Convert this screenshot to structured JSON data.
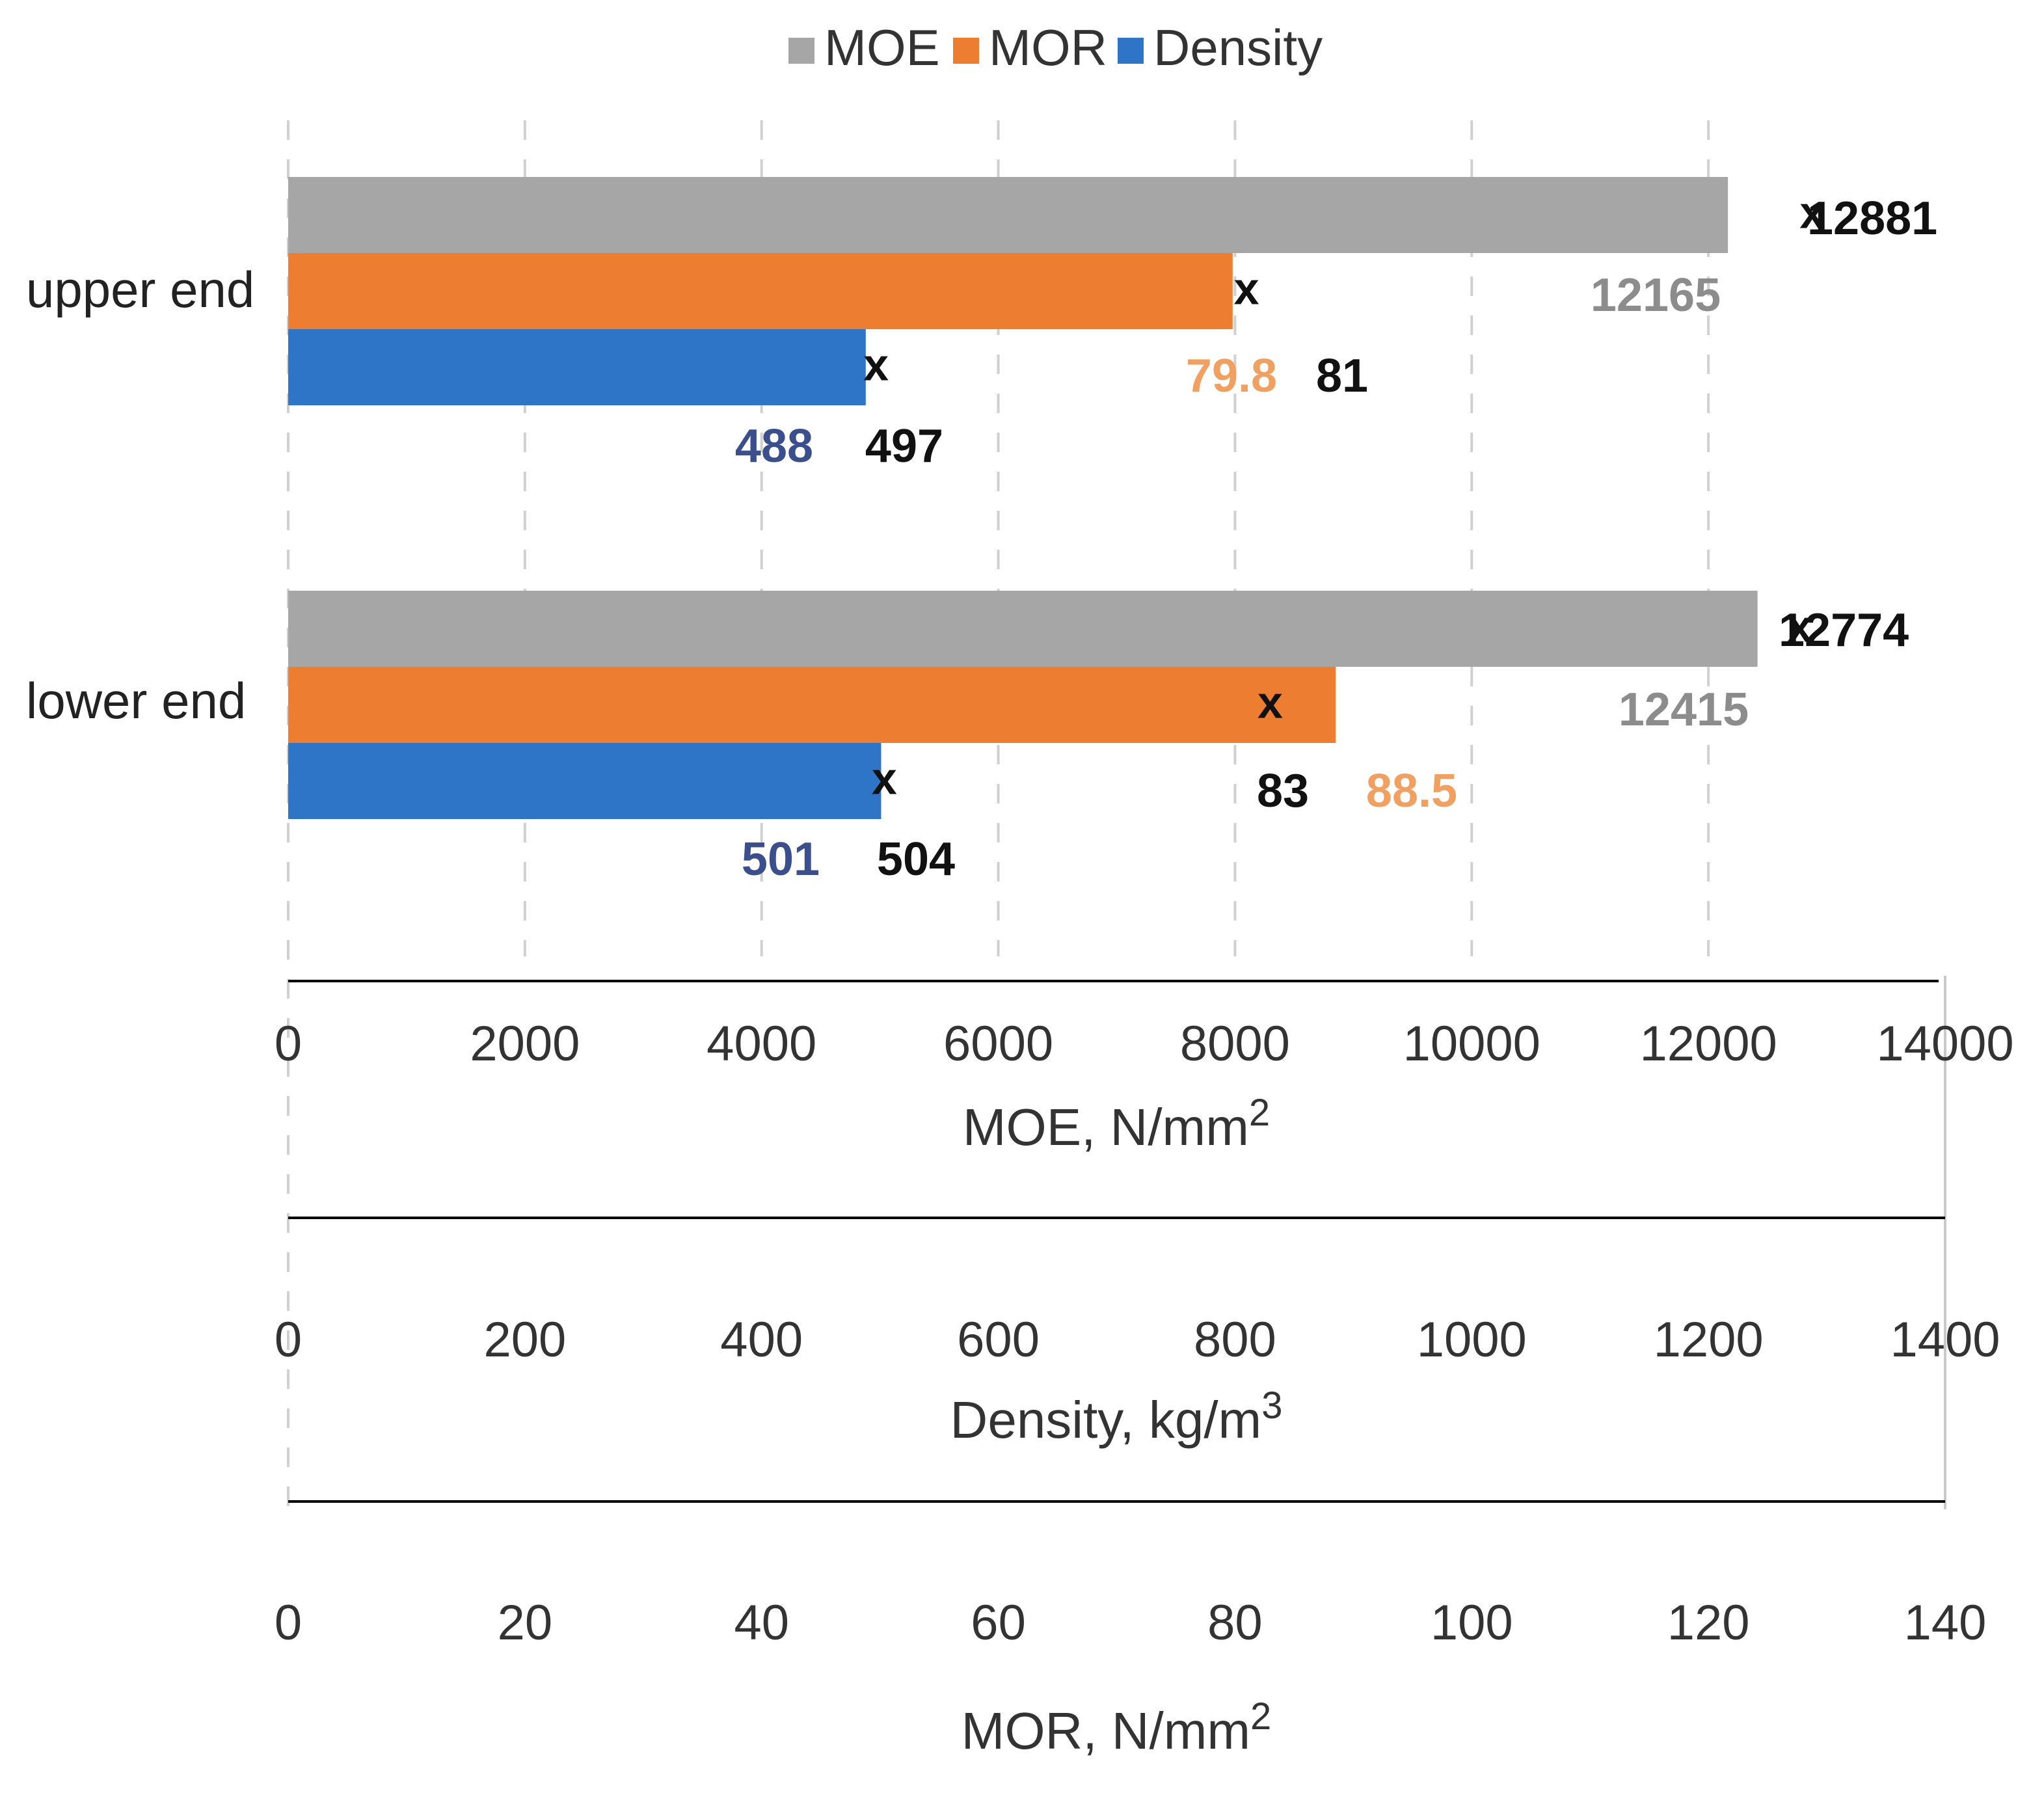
{
  "chart_data": {
    "type": "bar",
    "orientation": "horizontal",
    "categories": [
      "upper end",
      "lower end"
    ],
    "series": [
      {
        "name": "MOE",
        "color": "#a6a6a6",
        "axis": "MOE",
        "values": [
          12165,
          12415
        ],
        "reference": [
          12881,
          12774
        ]
      },
      {
        "name": "MOR",
        "color": "#ed7d31",
        "axis": "MOR",
        "values": [
          79.8,
          88.5
        ],
        "reference": [
          81,
          83
        ]
      },
      {
        "name": "Density",
        "color": "#2e75c8",
        "axis": "Density",
        "values": [
          488,
          501
        ],
        "reference": [
          497,
          504
        ]
      }
    ],
    "legend": {
      "position": "top",
      "items": [
        "MOE",
        "MOR",
        "Density"
      ]
    },
    "axes": [
      {
        "key": "MOE",
        "title_main": "MOE, N/mm",
        "title_sup": "2",
        "range": [
          0,
          14000
        ],
        "ticks": [
          "0",
          "2000",
          "4000",
          "6000",
          "8000",
          "10000",
          "12000",
          "14000"
        ]
      },
      {
        "key": "Density",
        "title_main": "Density, kg/m",
        "title_sup": "3",
        "range": [
          0,
          1400
        ],
        "ticks": [
          "0",
          "200",
          "400",
          "600",
          "800",
          "1000",
          "1200",
          "1400"
        ]
      },
      {
        "key": "MOR",
        "title_main": "MOR, N/mm",
        "title_sup": "2",
        "range": [
          0,
          140
        ],
        "ticks": [
          "0",
          "20",
          "40",
          "60",
          "80",
          "100",
          "120",
          "140"
        ]
      }
    ],
    "grid": true,
    "data_label_colors": {
      "MOE": "#8c8c8c",
      "MOR": "#f0a060",
      "Density": "#3a4f8c",
      "reference": "#111111"
    },
    "marker_symbol": "x"
  }
}
